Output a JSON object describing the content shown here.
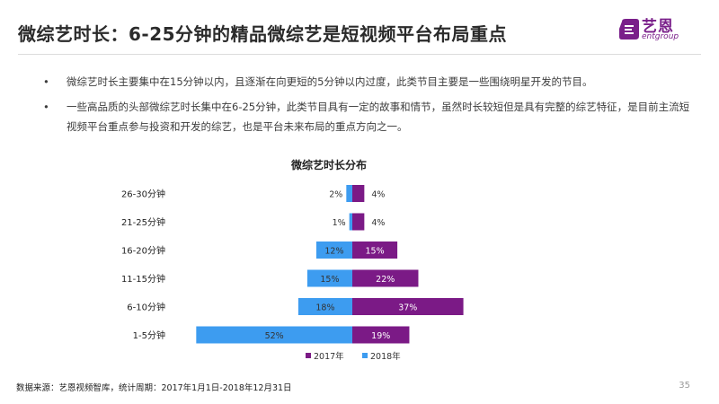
{
  "header": {
    "title": "微综艺时长：6-25分钟的精品微综艺是短视频平台布局重点",
    "logo_cn": "艺恩",
    "logo_en": "entgroup"
  },
  "bullets": [
    "微综艺时长主要集中在15分钟以内，且逐渐在向更短的5分钟以内过度，此类节目主要是一些围绕明星开发的节目。",
    "一些高品质的头部微综艺时长集中在6-25分钟，此类节目具有一定的故事和情节，虽然时长较短但是具有完整的综艺特征，是目前主流短视频平台重点参与投资和开发的综艺，也是平台未来布局的重点方向之一。"
  ],
  "bullet_symbol": "•",
  "chart_data": {
    "type": "bar",
    "orientation": "horizontal-butterfly",
    "title": "微综艺时长分布",
    "categories": [
      "26-30分钟",
      "21-25分钟",
      "16-20分钟",
      "11-15分钟",
      "6-10分钟",
      "1-5分钟"
    ],
    "series": [
      {
        "name": "2017年",
        "values": [
          4,
          4,
          15,
          22,
          37,
          19
        ],
        "labels": [
          "4%",
          "4%",
          "15%",
          "22%",
          "37%",
          "19%"
        ],
        "color": "#7b1a86",
        "side": "right"
      },
      {
        "name": "2018年",
        "values": [
          2,
          1,
          12,
          15,
          18,
          52
        ],
        "labels": [
          "2%",
          "1%",
          "12%",
          "15%",
          "18%",
          "52%"
        ],
        "color": "#3d9cf0",
        "side": "left"
      }
    ],
    "unit": "%",
    "legend_position": "bottom",
    "grid": false
  },
  "footer": {
    "source": "数据来源：艺恩视频智库，统计周期：2017年1月1日-2018年12月31日",
    "page": "35"
  }
}
